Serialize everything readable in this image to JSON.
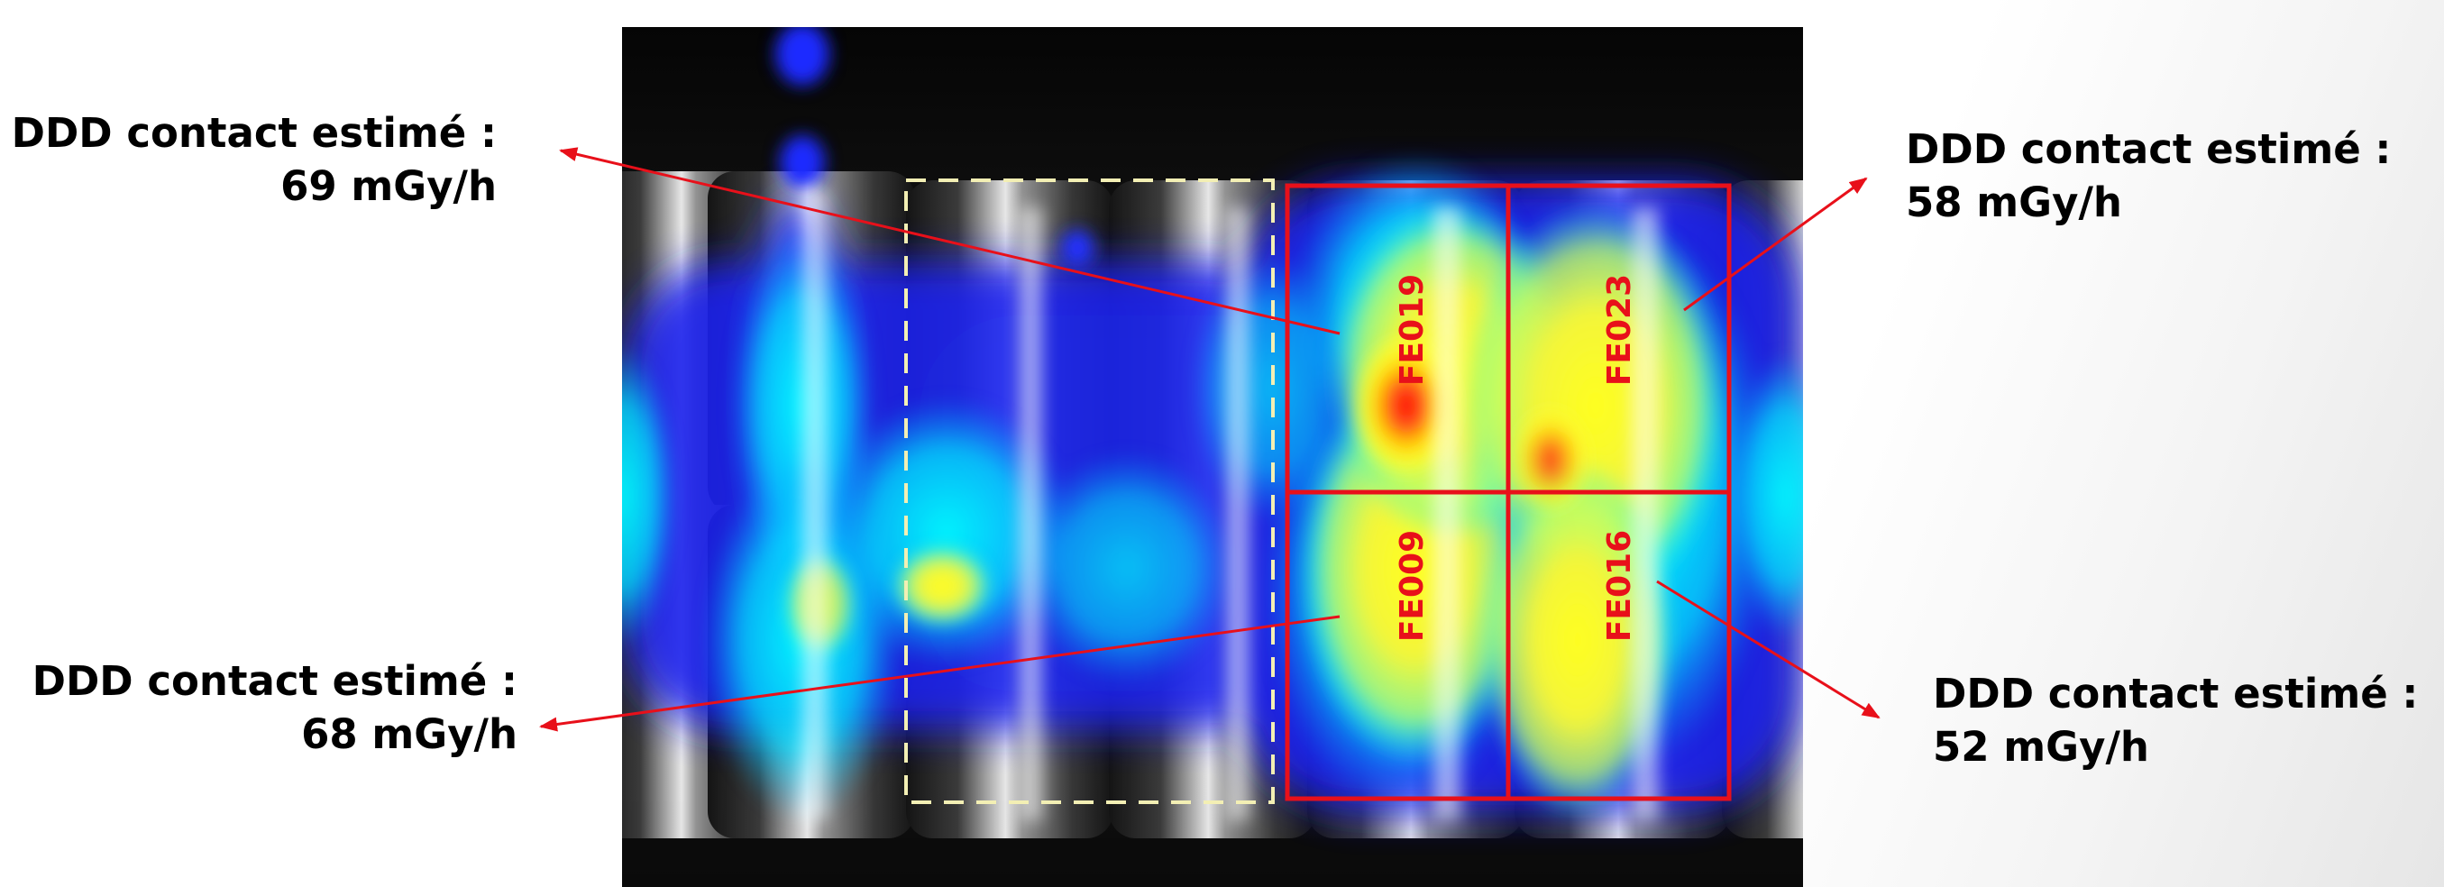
{
  "callouts": {
    "top_left": {
      "line1": "DDD contact estimé :",
      "line2": "69 mGy/h"
    },
    "bottom_left": {
      "line1": "DDD contact estimé :",
      "line2": "68 mGy/h"
    },
    "top_right": {
      "line1": "DDD contact estimé :",
      "line2": "58 mGy/h"
    },
    "bottom_right": {
      "line1": "DDD contact estimé :",
      "line2": "52 mGy/h"
    }
  },
  "cells": {
    "top_left": "FE019",
    "top_right": "FE023",
    "bottom_left": "FE009",
    "bottom_right": "FE016"
  },
  "colors": {
    "frame": "#e8101a",
    "dashed_box": "#f3efb4",
    "arrow": "#e8101a"
  }
}
